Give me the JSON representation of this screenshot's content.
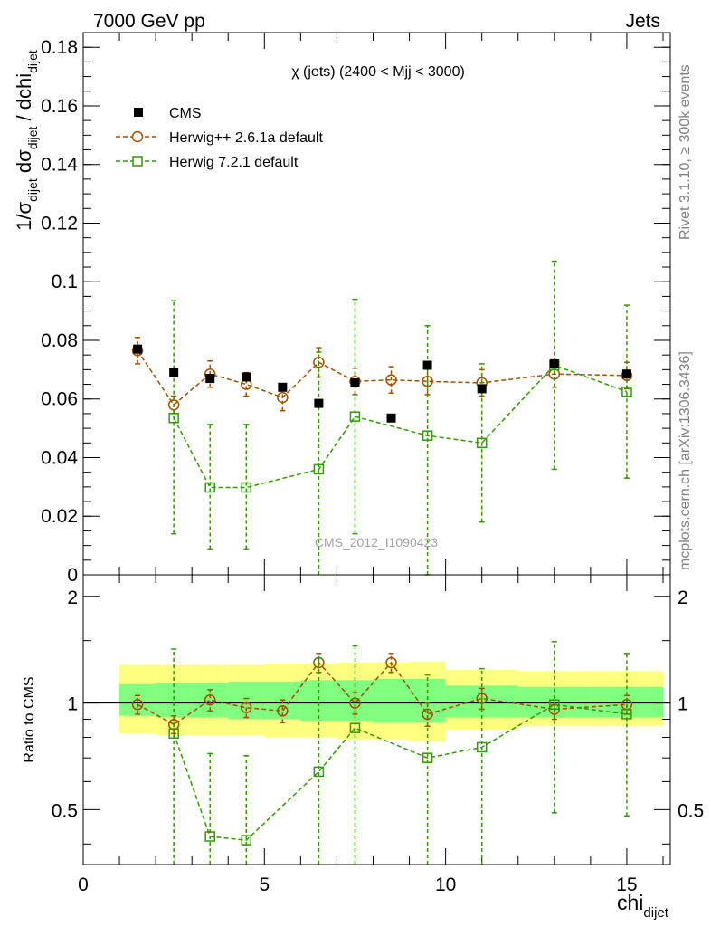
{
  "header": {
    "left": "7000 GeV pp",
    "right": "Jets"
  },
  "side_labels": {
    "rivet": "Rivet 3.1.10, ≥ 300k events",
    "mcplots": "mcplots.cern.ch [arXiv:1306.3436]"
  },
  "watermark": "CMS_2012_I1090423",
  "chart_data": [
    {
      "type": "scatter",
      "panel": "main",
      "title": "χ (jets) (2400 < Mjj < 3000)",
      "ylabel": "1/σ_dijet dσ_dijet / dchi_dijet",
      "xlabel": "chi_dijet",
      "xlim": [
        0,
        16.2
      ],
      "ylim": [
        0,
        0.185
      ],
      "y_ticks": [
        0,
        0.02,
        0.04,
        0.06,
        0.08,
        0.1,
        0.12,
        0.14,
        0.16,
        0.18
      ],
      "y_tick_labels": [
        "0",
        "0.02",
        "0.04",
        "0.06",
        "0.08",
        "0.1",
        "0.12",
        "0.14",
        "0.16",
        "0.18"
      ],
      "legend_position": "top-left",
      "series": [
        {
          "name": "CMS",
          "color": "#000000",
          "marker": "filled-square",
          "x": [
            1.5,
            2.5,
            3.5,
            4.5,
            5.5,
            6.5,
            7.5,
            8.5,
            9.5,
            11,
            13,
            15
          ],
          "y": [
            0.077,
            0.069,
            0.067,
            0.0675,
            0.064,
            0.0585,
            0.0655,
            0.0535,
            0.0715,
            0.0635,
            0.072,
            0.0685
          ]
        },
        {
          "name": "Herwig++ 2.6.1a default",
          "color": "#a05000",
          "marker": "open-circle",
          "x": [
            1.5,
            2.5,
            3.5,
            4.5,
            5.5,
            6.5,
            7.5,
            8.5,
            9.5,
            11,
            13,
            15
          ],
          "y": [
            0.0765,
            0.058,
            0.0685,
            0.065,
            0.0605,
            0.0725,
            0.066,
            0.0665,
            0.066,
            0.0655,
            0.0685,
            0.068
          ],
          "err": [
            0.0045,
            0.003,
            0.0045,
            0.004,
            0.0045,
            0.005,
            0.0045,
            0.0045,
            0.0045,
            0.0045,
            0.0045,
            0.0045
          ]
        },
        {
          "name": "Herwig 7.2.1 default",
          "color": "#339900",
          "marker": "open-square",
          "x": [
            2.5,
            3.5,
            4.5,
            6.5,
            7.5,
            9.5,
            11,
            13,
            15
          ],
          "y": [
            0.0535,
            0.0298,
            0.0298,
            0.036,
            0.054,
            0.0475,
            0.045,
            0.0715,
            0.0625
          ],
          "err_low": [
            0.0395,
            0.021,
            0.021,
            0.04,
            0.04,
            0.0475,
            0.027,
            0.0355,
            0.0295
          ],
          "err_high": [
            0.04,
            0.0215,
            0.0215,
            0.04,
            0.04,
            0.0375,
            0.027,
            0.0355,
            0.0295
          ]
        }
      ]
    },
    {
      "type": "scatter",
      "panel": "ratio",
      "ylabel": "Ratio to CMS",
      "xlabel": "chi_dijet",
      "xlim": [
        0,
        16.2
      ],
      "ylim": [
        0.35,
        2.3
      ],
      "x_ticks": [
        0,
        5,
        10,
        15
      ],
      "x_tick_labels": [
        "0",
        "5",
        "10",
        "15"
      ],
      "y_ticks": [
        0.5,
        1,
        2
      ],
      "y_tick_labels": [
        "0.5",
        "1",
        "2"
      ],
      "bands": {
        "x_edges": [
          1,
          2,
          3,
          4,
          5,
          6,
          7,
          8,
          9,
          10,
          12,
          14,
          16
        ],
        "yellow_low": [
          0.82,
          0.81,
          0.81,
          0.81,
          0.8,
          0.8,
          0.79,
          0.79,
          0.78,
          0.84,
          0.86,
          0.86
        ],
        "yellow_high": [
          1.28,
          1.28,
          1.28,
          1.28,
          1.29,
          1.29,
          1.3,
          1.3,
          1.31,
          1.24,
          1.23,
          1.23
        ],
        "green_low": [
          0.92,
          0.91,
          0.91,
          0.9,
          0.9,
          0.89,
          0.89,
          0.88,
          0.88,
          0.91,
          0.91,
          0.91
        ],
        "green_high": [
          1.13,
          1.14,
          1.14,
          1.15,
          1.15,
          1.16,
          1.16,
          1.17,
          1.17,
          1.12,
          1.11,
          1.11
        ],
        "yellow_color": "#ffff80",
        "green_color": "#80ff80"
      },
      "series": [
        {
          "name": "Herwig++ 2.6.1a default",
          "color": "#a05000",
          "x": [
            1.5,
            2.5,
            3.5,
            4.5,
            5.5,
            6.5,
            7.5,
            8.5,
            9.5,
            11,
            13,
            15
          ],
          "y": [
            0.99,
            0.87,
            1.02,
            0.97,
            0.95,
            1.3,
            1.0,
            1.3,
            0.93,
            1.03,
            0.96,
            0.99
          ],
          "err": [
            0.06,
            0.05,
            0.07,
            0.06,
            0.07,
            0.08,
            0.07,
            0.08,
            0.07,
            0.07,
            0.06,
            0.06
          ]
        },
        {
          "name": "Herwig 7.2.1 default",
          "color": "#339900",
          "x": [
            2.5,
            3.5,
            4.5,
            6.5,
            7.5,
            9.5,
            11,
            13,
            15
          ],
          "y": [
            0.82,
            0.42,
            0.41,
            0.64,
            0.85,
            0.7,
            0.75,
            0.99,
            0.93
          ],
          "err_low": [
            0.6,
            0.3,
            0.3,
            0.7,
            0.6,
            0.7,
            0.5,
            0.5,
            0.45
          ],
          "err_high": [
            0.6,
            0.3,
            0.3,
            0.7,
            0.6,
            0.5,
            0.5,
            0.5,
            0.45
          ]
        }
      ]
    }
  ]
}
